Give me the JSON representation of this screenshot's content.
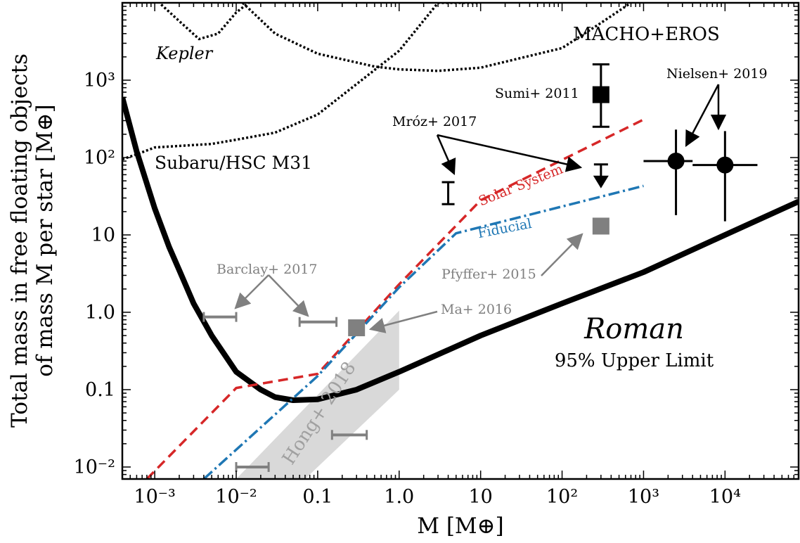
{
  "chart_data": {
    "type": "line",
    "xscale": "log",
    "yscale": "log",
    "xlim": [
      0.0004,
      80000
    ],
    "ylim": [
      0.007,
      10000
    ],
    "grid": false,
    "xlabel": "M [M⊕]",
    "ylabel_line1": "Total mass in free floating objects",
    "ylabel_line2": "of mass M per star [M⊕]",
    "x_ticks": [
      {
        "value": 0.001,
        "label": "10⁻³"
      },
      {
        "value": 0.01,
        "label": "10⁻²"
      },
      {
        "value": 0.1,
        "label": "0.1"
      },
      {
        "value": 1,
        "label": "1.0"
      },
      {
        "value": 10,
        "label": "10"
      },
      {
        "value": 100,
        "label": "10²"
      },
      {
        "value": 1000,
        "label": "10³"
      },
      {
        "value": 10000,
        "label": "10⁴"
      }
    ],
    "y_ticks": [
      {
        "value": 0.01,
        "label": "10⁻²"
      },
      {
        "value": 0.1,
        "label": "0.1"
      },
      {
        "value": 1,
        "label": "1.0"
      },
      {
        "value": 10,
        "label": "10"
      },
      {
        "value": 100,
        "label": "10²"
      },
      {
        "value": 1000,
        "label": "10³"
      }
    ],
    "shaded_regions": [
      {
        "name": "Hong+ 2018",
        "color": "#d9d9d9",
        "polygon": [
          [
            0.01,
            0.007
          ],
          [
            0.07,
            0.007
          ],
          [
            1.0,
            0.1
          ],
          [
            1.0,
            1.05
          ]
        ]
      }
    ],
    "series": [
      {
        "name": "Roman",
        "style": "solid-thick",
        "color": "#000000",
        "x": [
          0.0004,
          0.0006,
          0.001,
          0.0015,
          0.002,
          0.003,
          0.005,
          0.01,
          0.02,
          0.03,
          0.05,
          0.1,
          0.3,
          1,
          10,
          100,
          1000,
          10000,
          80000
        ],
        "y": [
          600,
          120,
          22,
          7,
          3.5,
          1.3,
          0.5,
          0.17,
          0.1,
          0.08,
          0.073,
          0.075,
          0.1,
          0.17,
          0.5,
          1.3,
          3.3,
          10,
          27
        ]
      },
      {
        "name": "Solar System",
        "style": "dashed",
        "color": "#d62728",
        "x": [
          0.0008,
          0.01,
          0.1,
          1,
          10,
          1000
        ],
        "y": [
          0.007,
          0.105,
          0.16,
          2.3,
          28,
          310
        ]
      },
      {
        "name": "Fiducial",
        "style": "dashdot",
        "color": "#1f77b4",
        "x": [
          0.004,
          0.1,
          1,
          5,
          1000
        ],
        "y": [
          0.007,
          0.15,
          2.1,
          10.5,
          43
        ]
      },
      {
        "name": "Kepler",
        "style": "dotted",
        "color": "#000000",
        "x": [
          0.0012,
          0.002,
          0.0035,
          0.006,
          0.01,
          0.016
        ],
        "y": [
          9500,
          5800,
          3400,
          4000,
          7500,
          11000
        ]
      },
      {
        "name": "MACHO+EROS",
        "style": "dotted",
        "color": "#000000",
        "x": [
          0.012,
          0.03,
          0.1,
          0.5,
          1,
          3,
          10,
          100,
          300,
          700
        ],
        "y": [
          10000,
          4000,
          2200,
          1500,
          1380,
          1320,
          1450,
          2600,
          5500,
          10000
        ]
      },
      {
        "name": "Subaru/HSC M31",
        "style": "dotted",
        "color": "#000000",
        "x": [
          0.0004,
          0.0006,
          0.001,
          0.005,
          0.01,
          0.03,
          0.1,
          1,
          3,
          10
        ],
        "y": [
          95,
          110,
          135,
          150,
          170,
          210,
          360,
          2400,
          10000,
          10000
        ]
      }
    ],
    "markers": [
      {
        "label": "Sumi+ 2011",
        "shape": "square",
        "color": "#000000",
        "x": 300,
        "y": 650,
        "yerr": [
          250,
          1600
        ]
      },
      {
        "label": "Mróz+ 2017",
        "shape": "range",
        "color": "#000000",
        "x": 4,
        "yerr": [
          25,
          48
        ]
      },
      {
        "label": "Mróz+ 2017",
        "shape": "upper-limit",
        "color": "#000000",
        "x": 300,
        "y": 75
      },
      {
        "label": "Nielsen+ 2019",
        "shape": "circle",
        "color": "#000000",
        "x": 2500,
        "y": 90,
        "xerr": [
          1000,
          4000
        ],
        "yerr": [
          18,
          230
        ]
      },
      {
        "label": "Nielsen+ 2019",
        "shape": "circle",
        "color": "#000000",
        "x": 10000,
        "y": 80,
        "xerr": [
          4000,
          25000
        ],
        "yerr": [
          15,
          220
        ]
      },
      {
        "label": "Pfyffer+ 2015",
        "shape": "square",
        "color": "#808080",
        "x": 300,
        "y": 13
      },
      {
        "label": "Ma+ 2016",
        "shape": "square",
        "color": "#808080",
        "x": 0.3,
        "y": 0.63
      },
      {
        "label": "Barclay+ 2017",
        "shape": "range",
        "color": "#808080",
        "y": 0.87,
        "xerr": [
          0.004,
          0.01
        ]
      },
      {
        "label": "Barclay+ 2017",
        "shape": "range",
        "color": "#808080",
        "y": 0.75,
        "xerr": [
          0.06,
          0.17
        ]
      },
      {
        "label": "",
        "shape": "range",
        "color": "#808080",
        "y": 0.026,
        "xerr": [
          0.15,
          0.4
        ]
      },
      {
        "label": "",
        "shape": "range",
        "color": "#808080",
        "y": 0.01,
        "xerr": [
          0.01,
          0.025
        ]
      }
    ],
    "annotations": [
      {
        "id": "kepler",
        "text": "Kepler",
        "italic": true
      },
      {
        "id": "macho",
        "text": "MACHO+EROS"
      },
      {
        "id": "subaru",
        "text": "Subaru/HSC M31"
      },
      {
        "id": "sumi",
        "text": "Sumi+ 2011"
      },
      {
        "id": "mroz",
        "text": "Mróz+ 2017"
      },
      {
        "id": "nielsen",
        "text": "Nielsen+ 2019"
      },
      {
        "id": "solar",
        "text": "Solar System"
      },
      {
        "id": "fiducial",
        "text": "Fiducial"
      },
      {
        "id": "pfyffer",
        "text": "Pfyffer+ 2015"
      },
      {
        "id": "barclay",
        "text": "Barclay+ 2017"
      },
      {
        "id": "ma",
        "text": "Ma+ 2016"
      },
      {
        "id": "hong",
        "text": "Hong+ 2018"
      },
      {
        "id": "roman",
        "text": "Roman",
        "italic": true
      },
      {
        "id": "limit",
        "text": "95% Upper Limit"
      }
    ]
  }
}
